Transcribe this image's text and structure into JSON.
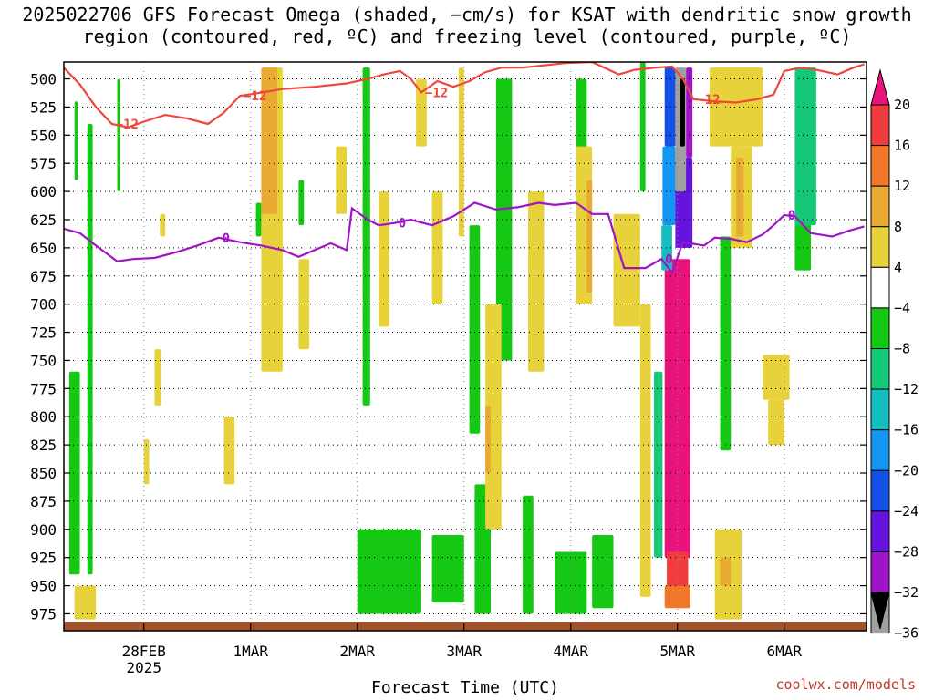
{
  "title": "2025022706 GFS Forecast Omega (shaded, −cm/s) for KSAT with dendritic snow growth region (contoured, red, ºC) and freezing level (contoured, purple, ºC)",
  "credit": "coolwx.com/models",
  "chart_data": {
    "type": "heatmap",
    "title": "2025022706 GFS Forecast Omega (shaded, −cm/s) for KSAT with dendritic snow growth region (contoured, red, ºC) and freezing level (contoured, purple, ºC)",
    "xlabel": "Forecast Time (UTC)",
    "ylabel": "",
    "x_ticks": [
      {
        "label": "28FEB",
        "sub": "2025",
        "day": 1
      },
      {
        "label": "1MAR",
        "day": 2
      },
      {
        "label": "2MAR",
        "day": 3
      },
      {
        "label": "3MAR",
        "day": 4
      },
      {
        "label": "4MAR",
        "day": 5
      },
      {
        "label": "5MAR",
        "day": 6
      },
      {
        "label": "6MAR",
        "day": 7
      }
    ],
    "xlim_days": [
      0.25,
      7.75
    ],
    "y_ticks": [
      500,
      525,
      550,
      575,
      600,
      625,
      650,
      675,
      700,
      725,
      750,
      775,
      800,
      825,
      850,
      875,
      900,
      925,
      950,
      975
    ],
    "ylim_hpa": [
      485,
      990
    ],
    "colorbar": {
      "labels": [
        "20",
        "16",
        "12",
        "8",
        "4",
        "−4",
        "−8",
        "−12",
        "−16",
        "−20",
        "−24",
        "−28",
        "−32",
        "−36"
      ],
      "colors": [
        "#e8147c",
        "#f03c3c",
        "#f07828",
        "#e8aa32",
        "#e8d23c",
        "#ffffff",
        "#14c814",
        "#14c878",
        "#14bebe",
        "#1496f0",
        "#1450e6",
        "#6414dc",
        "#a014c8",
        "#a0a0a0",
        "#000000"
      ]
    },
    "contours": [
      {
        "label": "−12",
        "color": "#f0463c",
        "points": [
          [
            0.25,
            490
          ],
          [
            0.4,
            505
          ],
          [
            0.55,
            525
          ],
          [
            0.7,
            540
          ],
          [
            0.85,
            543
          ],
          [
            1.0,
            538
          ],
          [
            1.2,
            532
          ],
          [
            1.4,
            535
          ],
          [
            1.6,
            540
          ],
          [
            1.75,
            530
          ],
          [
            1.9,
            515
          ],
          [
            2.05,
            513
          ],
          [
            2.3,
            509
          ],
          [
            2.6,
            507
          ],
          [
            2.9,
            504
          ],
          [
            3.1,
            500
          ],
          [
            3.25,
            496
          ],
          [
            3.4,
            493
          ],
          [
            3.5,
            500
          ],
          [
            3.6,
            512
          ],
          [
            3.75,
            502
          ],
          [
            3.9,
            507
          ],
          [
            4.05,
            502
          ],
          [
            4.2,
            494
          ],
          [
            4.35,
            490
          ],
          [
            4.55,
            490
          ],
          [
            4.75,
            488
          ],
          [
            4.95,
            486
          ],
          [
            5.2,
            485
          ],
          [
            5.45,
            496
          ],
          [
            5.6,
            492
          ],
          [
            5.8,
            490
          ],
          [
            5.95,
            489
          ],
          [
            6.05,
            500
          ],
          [
            6.15,
            518
          ],
          [
            6.35,
            520
          ],
          [
            6.55,
            521
          ],
          [
            6.75,
            518
          ],
          [
            6.9,
            514
          ],
          [
            7.0,
            493
          ],
          [
            7.15,
            490
          ],
          [
            7.3,
            492
          ],
          [
            7.5,
            496
          ],
          [
            7.65,
            490
          ],
          [
            7.75,
            487
          ]
        ]
      },
      {
        "label": "0",
        "color": "#a014c8",
        "points": [
          [
            0.25,
            633
          ],
          [
            0.4,
            637
          ],
          [
            0.55,
            648
          ],
          [
            0.75,
            662
          ],
          [
            0.9,
            660
          ],
          [
            1.1,
            659
          ],
          [
            1.3,
            654
          ],
          [
            1.5,
            648
          ],
          [
            1.7,
            641
          ],
          [
            1.9,
            645
          ],
          [
            2.1,
            648
          ],
          [
            2.3,
            652
          ],
          [
            2.45,
            658
          ],
          [
            2.6,
            652
          ],
          [
            2.75,
            646
          ],
          [
            2.9,
            652
          ],
          [
            2.95,
            615
          ],
          [
            3.1,
            625
          ],
          [
            3.2,
            630
          ],
          [
            3.35,
            628
          ],
          [
            3.5,
            625
          ],
          [
            3.7,
            630
          ],
          [
            3.9,
            622
          ],
          [
            4.1,
            610
          ],
          [
            4.3,
            616
          ],
          [
            4.5,
            614
          ],
          [
            4.7,
            610
          ],
          [
            4.85,
            612
          ],
          [
            5.05,
            610
          ],
          [
            5.2,
            620
          ],
          [
            5.35,
            620
          ],
          [
            5.5,
            668
          ],
          [
            5.7,
            668
          ],
          [
            5.85,
            660
          ],
          [
            5.95,
            672
          ],
          [
            6.05,
            645
          ],
          [
            6.25,
            648
          ],
          [
            6.35,
            641
          ],
          [
            6.5,
            642
          ],
          [
            6.65,
            645
          ],
          [
            6.8,
            638
          ],
          [
            6.9,
            630
          ],
          [
            7.0,
            621
          ],
          [
            7.1,
            622
          ],
          [
            7.25,
            637
          ],
          [
            7.45,
            640
          ],
          [
            7.6,
            635
          ],
          [
            7.75,
            631
          ]
        ]
      }
    ],
    "omega_regions": [
      {
        "value": -6,
        "x": [
          0.3,
          0.4
        ],
        "y": [
          760,
          940
        ]
      },
      {
        "value": -6,
        "x": [
          0.35,
          0.38
        ],
        "y": [
          520,
          590
        ]
      },
      {
        "value": -6,
        "x": [
          0.47,
          0.52
        ],
        "y": [
          540,
          940
        ]
      },
      {
        "value": -6,
        "x": [
          0.75,
          0.78
        ],
        "y": [
          500,
          600
        ]
      },
      {
        "value": -6,
        "x": [
          2.05,
          2.1
        ],
        "y": [
          610,
          640
        ]
      },
      {
        "value": -6,
        "x": [
          2.45,
          2.5
        ],
        "y": [
          590,
          630
        ]
      },
      {
        "value": -6,
        "x": [
          3.05,
          3.12
        ],
        "y": [
          490,
          790
        ]
      },
      {
        "value": -6,
        "x": [
          3.0,
          3.6
        ],
        "y": [
          900,
          975
        ]
      },
      {
        "value": -6,
        "x": [
          3.7,
          4.0
        ],
        "y": [
          905,
          965
        ]
      },
      {
        "value": -6,
        "x": [
          4.05,
          4.15
        ],
        "y": [
          630,
          815
        ]
      },
      {
        "value": -6,
        "x": [
          4.1,
          4.25
        ],
        "y": [
          860,
          975
        ]
      },
      {
        "value": -6,
        "x": [
          4.55,
          4.65
        ],
        "y": [
          870,
          975
        ]
      },
      {
        "value": -6,
        "x": [
          4.3,
          4.45
        ],
        "y": [
          500,
          750
        ]
      },
      {
        "value": -6,
        "x": [
          4.85,
          5.15
        ],
        "y": [
          920,
          975
        ]
      },
      {
        "value": -6,
        "x": [
          5.05,
          5.15
        ],
        "y": [
          500,
          590
        ]
      },
      {
        "value": -6,
        "x": [
          5.2,
          5.4
        ],
        "y": [
          905,
          970
        ]
      },
      {
        "value": -6,
        "x": [
          5.65,
          5.7
        ],
        "y": [
          400,
          600
        ]
      },
      {
        "value": -6,
        "x": [
          6.4,
          6.5
        ],
        "y": [
          640,
          830
        ]
      },
      {
        "value": -6,
        "x": [
          7.1,
          7.25
        ],
        "y": [
          620,
          670
        ]
      },
      {
        "value": -10,
        "x": [
          7.1,
          7.3
        ],
        "y": [
          490,
          630
        ]
      },
      {
        "value": 6,
        "x": [
          1.0,
          1.05
        ],
        "y": [
          820,
          860
        ]
      },
      {
        "value": 6,
        "x": [
          1.1,
          1.16
        ],
        "y": [
          740,
          790
        ]
      },
      {
        "value": 6,
        "x": [
          1.15,
          1.2
        ],
        "y": [
          620,
          640
        ]
      },
      {
        "value": 6,
        "x": [
          0.35,
          0.55
        ],
        "y": [
          950,
          980
        ]
      },
      {
        "value": 6,
        "x": [
          1.75,
          1.85
        ],
        "y": [
          800,
          860
        ]
      },
      {
        "value": 6,
        "x": [
          2.1,
          2.3
        ],
        "y": [
          490,
          760
        ]
      },
      {
        "value": 6,
        "x": [
          2.45,
          2.55
        ],
        "y": [
          660,
          740
        ]
      },
      {
        "value": 6,
        "x": [
          2.8,
          2.9
        ],
        "y": [
          560,
          620
        ]
      },
      {
        "value": 6,
        "x": [
          3.2,
          3.3
        ],
        "y": [
          600,
          720
        ]
      },
      {
        "value": 6,
        "x": [
          3.55,
          3.65
        ],
        "y": [
          500,
          560
        ]
      },
      {
        "value": 6,
        "x": [
          3.7,
          3.8
        ],
        "y": [
          600,
          700
        ]
      },
      {
        "value": 6,
        "x": [
          3.95,
          4.0
        ],
        "y": [
          490,
          640
        ]
      },
      {
        "value": 6,
        "x": [
          4.2,
          4.35
        ],
        "y": [
          700,
          900
        ]
      },
      {
        "value": 6,
        "x": [
          4.6,
          4.75
        ],
        "y": [
          600,
          760
        ]
      },
      {
        "value": 6,
        "x": [
          5.05,
          5.2
        ],
        "y": [
          560,
          700
        ]
      },
      {
        "value": 6,
        "x": [
          5.4,
          5.65
        ],
        "y": [
          620,
          720
        ]
      },
      {
        "value": 6,
        "x": [
          5.65,
          5.75
        ],
        "y": [
          700,
          960
        ]
      },
      {
        "value": 6,
        "x": [
          6.3,
          6.8
        ],
        "y": [
          490,
          560
        ]
      },
      {
        "value": 6,
        "x": [
          6.5,
          6.7
        ],
        "y": [
          560,
          650
        ]
      },
      {
        "value": 6,
        "x": [
          6.35,
          6.6
        ],
        "y": [
          900,
          980
        ]
      },
      {
        "value": 6,
        "x": [
          6.8,
          7.05
        ],
        "y": [
          745,
          785
        ]
      },
      {
        "value": 6,
        "x": [
          6.85,
          7.0
        ],
        "y": [
          785,
          825
        ]
      },
      {
        "value": 10,
        "x": [
          2.1,
          2.25
        ],
        "y": [
          490,
          620
        ]
      },
      {
        "value": 10,
        "x": [
          4.2,
          4.25
        ],
        "y": [
          790,
          850
        ]
      },
      {
        "value": 10,
        "x": [
          5.15,
          5.2
        ],
        "y": [
          590,
          690
        ]
      },
      {
        "value": 10,
        "x": [
          6.55,
          6.62
        ],
        "y": [
          570,
          640
        ]
      },
      {
        "value": 10,
        "x": [
          6.4,
          6.5
        ],
        "y": [
          925,
          950
        ]
      },
      {
        "value": 22,
        "x": [
          5.88,
          6.12
        ],
        "y": [
          660,
          925
        ]
      },
      {
        "value": 18,
        "x": [
          5.9,
          6.1
        ],
        "y": [
          920,
          955
        ]
      },
      {
        "value": 14,
        "x": [
          5.88,
          6.12
        ],
        "y": [
          950,
          970
        ]
      },
      {
        "value": -10,
        "x": [
          5.78,
          5.86
        ],
        "y": [
          760,
          925
        ]
      },
      {
        "value": -14,
        "x": [
          5.85,
          5.95
        ],
        "y": [
          630,
          670
        ]
      },
      {
        "value": -18,
        "x": [
          5.86,
          5.98
        ],
        "y": [
          560,
          630
        ]
      },
      {
        "value": -22,
        "x": [
          5.88,
          5.98
        ],
        "y": [
          490,
          560
        ]
      },
      {
        "value": -26,
        "x": [
          5.98,
          6.14
        ],
        "y": [
          570,
          650
        ]
      },
      {
        "value": -30,
        "x": [
          6.08,
          6.14
        ],
        "y": [
          490,
          570
        ]
      },
      {
        "value": -34,
        "x": [
          5.98,
          6.08
        ],
        "y": [
          490,
          600
        ]
      },
      {
        "value": -38,
        "x": [
          6.02,
          6.07
        ],
        "y": [
          500,
          560
        ]
      }
    ]
  }
}
